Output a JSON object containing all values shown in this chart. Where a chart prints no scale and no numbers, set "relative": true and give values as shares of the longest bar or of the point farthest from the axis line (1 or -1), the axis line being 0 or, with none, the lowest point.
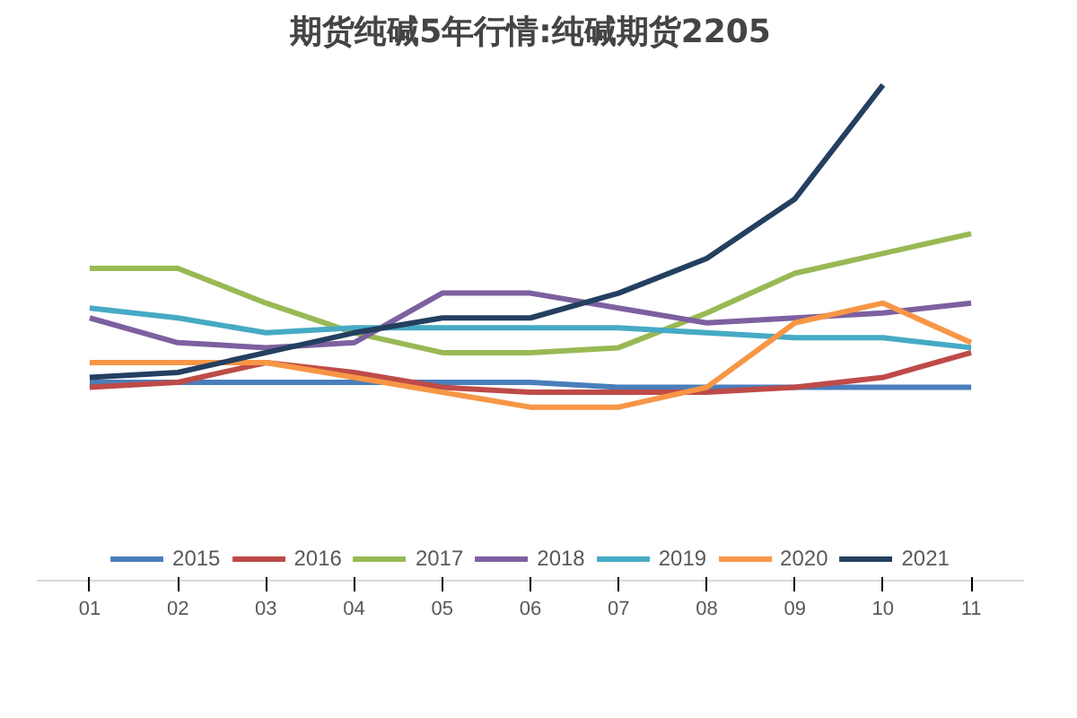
{
  "chart_data": {
    "type": "line",
    "title": "期货纯碱5年行情:纯碱期货2205",
    "relative": true,
    "legend": "bottom",
    "categories": [
      "01",
      "02",
      "03",
      "04",
      "05",
      "06",
      "07",
      "08",
      "09",
      "10",
      "11"
    ],
    "series": [
      {
        "name": "2015",
        "color": "#4a7ebb",
        "values": [
          0.4,
          0.4,
          0.4,
          0.4,
          0.4,
          0.4,
          0.39,
          0.39,
          0.39,
          0.39,
          0.39
        ]
      },
      {
        "name": "2016",
        "color": "#be4b48",
        "values": [
          0.39,
          0.4,
          0.44,
          0.42,
          0.39,
          0.38,
          0.38,
          0.38,
          0.39,
          0.41,
          0.46
        ]
      },
      {
        "name": "2017",
        "color": "#98b954",
        "values": [
          0.63,
          0.63,
          0.56,
          0.5,
          0.46,
          0.46,
          0.47,
          0.54,
          0.62,
          0.66,
          0.7
        ]
      },
      {
        "name": "2018",
        "color": "#7d60a0",
        "values": [
          0.53,
          0.48,
          0.47,
          0.48,
          0.58,
          0.58,
          0.55,
          0.52,
          0.53,
          0.54,
          0.56
        ]
      },
      {
        "name": "2019",
        "color": "#46aac5",
        "values": [
          0.55,
          0.53,
          0.5,
          0.51,
          0.51,
          0.51,
          0.51,
          0.5,
          0.49,
          0.49,
          0.47
        ]
      },
      {
        "name": "2020",
        "color": "#f79646",
        "values": [
          0.44,
          0.44,
          0.44,
          0.41,
          0.38,
          0.35,
          0.35,
          0.39,
          0.52,
          0.56,
          0.48
        ]
      },
      {
        "name": "2021",
        "color": "#243f60",
        "values": [
          0.41,
          0.42,
          0.46,
          0.5,
          0.53,
          0.53,
          0.58,
          0.65,
          0.77,
          1.0,
          null
        ]
      }
    ]
  }
}
